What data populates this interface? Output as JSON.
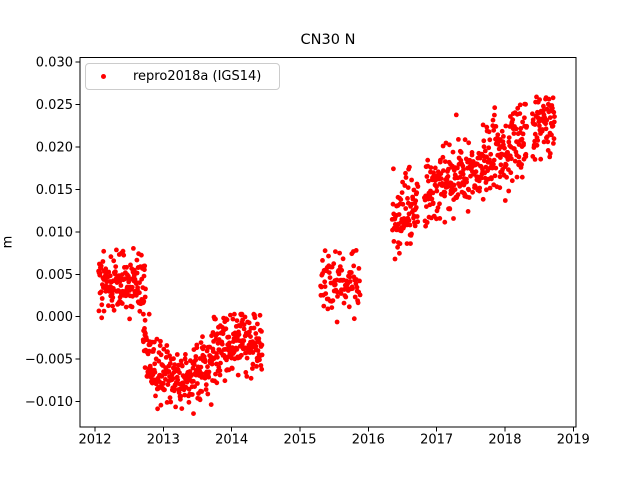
{
  "title": "CN30 N",
  "ylabel": "m",
  "legend": {
    "label": "repro2018a (IGS14)"
  },
  "chart_data": {
    "type": "scatter",
    "title": "CN30 N",
    "xlabel": "",
    "ylabel": "m",
    "xlim": [
      2011.78,
      2019.04
    ],
    "ylim": [
      -0.013,
      0.0305
    ],
    "grid": false,
    "legend_position": "upper left",
    "x_ticks": {
      "values": [
        2012,
        2013,
        2014,
        2015,
        2016,
        2017,
        2018,
        2019
      ],
      "labels": [
        "2012",
        "2013",
        "2014",
        "2015",
        "2016",
        "2017",
        "2018",
        "2019"
      ]
    },
    "y_ticks": {
      "values": [
        0.03,
        0.025,
        0.02,
        0.015,
        0.01,
        0.005,
        0.0,
        -0.005,
        -0.01
      ],
      "labels": [
        "0.030",
        "0.025",
        "0.020",
        "0.015",
        "0.010",
        "0.005",
        "0.000",
        "−0.005",
        "−0.010"
      ]
    },
    "series": [
      {
        "name": "repro2018a (IGS14)",
        "color": "#ff0000",
        "marker": "dot",
        "marker_radius": 2.4,
        "seed": 42,
        "segments": [
          {
            "name": "2012-plateau",
            "t0": 2012.05,
            "t1": 2012.74,
            "n": 170,
            "sigma": 0.0018,
            "clamp": [
              -0.0012,
              0.0092
            ],
            "trend": [
              [
                2012.05,
                0.004
              ],
              [
                2012.74,
                0.0038
              ]
            ]
          },
          {
            "name": "2012-2014-dip",
            "t0": 2012.7,
            "t1": 2014.45,
            "n": 430,
            "sigma": 0.0019,
            "clamp": [
              -0.0114,
              0.0003
            ],
            "trend": [
              [
                2012.7,
                -0.003
              ],
              [
                2012.85,
                -0.006
              ],
              [
                2013.0,
                -0.0065
              ],
              [
                2013.35,
                -0.0075
              ],
              [
                2013.5,
                -0.0065
              ],
              [
                2013.7,
                -0.0048
              ],
              [
                2013.9,
                -0.0038
              ],
              [
                2014.1,
                -0.0028
              ],
              [
                2014.3,
                -0.003
              ],
              [
                2014.45,
                -0.0035
              ]
            ]
          },
          {
            "name": "2015-blob",
            "t0": 2015.3,
            "t1": 2015.88,
            "n": 95,
            "sigma": 0.0017,
            "clamp": [
              -0.0016,
              0.0099
            ],
            "trend": [
              [
                2015.3,
                0.004
              ],
              [
                2015.88,
                0.004
              ]
            ]
          },
          {
            "name": "2016-2018-rise",
            "t0": 2016.35,
            "t1": 2018.73,
            "n": 540,
            "sigma": 0.0022,
            "clamp": [
              0.0068,
              0.0287
            ],
            "gaps": [
              [
                2016.73,
                2016.82
              ],
              [
                2018.32,
                2018.4
              ]
            ],
            "trend": [
              [
                2016.35,
                0.011
              ],
              [
                2016.6,
                0.0125
              ],
              [
                2016.9,
                0.0145
              ],
              [
                2017.2,
                0.016
              ],
              [
                2017.5,
                0.017
              ],
              [
                2017.8,
                0.0185
              ],
              [
                2018.1,
                0.0203
              ],
              [
                2018.3,
                0.021
              ],
              [
                2018.45,
                0.0222
              ],
              [
                2018.73,
                0.0233
              ]
            ]
          }
        ]
      }
    ]
  }
}
